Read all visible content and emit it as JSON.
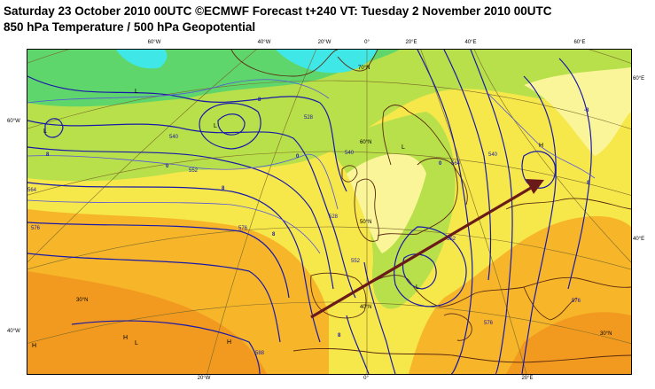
{
  "header": {
    "title": "Saturday 23 October 2010 00UTC ©ECMWF Forecast t+240 VT: Tuesday 2 November 2010 00UTC",
    "subtitle": "850 hPa Temperature / 500 hPa Geopotential"
  },
  "ticks": {
    "top": [
      "60°W",
      "40°W",
      "20°W",
      "0°",
      "20°E",
      "40°E",
      "60°E"
    ],
    "bottom": [
      "20°W",
      "0°",
      "20°E"
    ],
    "left": [
      "60°W",
      "40°W"
    ],
    "right": [
      "60°E",
      "40°E"
    ]
  },
  "map_labels": {
    "lat_70": "70°N",
    "lat_60": "60°N",
    "lat_50": "50°N",
    "lat_40": "40°N",
    "lat_30": "30°N",
    "lat_30b": "30°N"
  },
  "contours": {
    "c528a": "528",
    "c540a": "540",
    "c552a": "552",
    "c564a": "564",
    "c576a": "576",
    "c576b": "576",
    "c588a": "588",
    "c540b": "540",
    "c552b": "552",
    "c564b": "564",
    "c576c": "576",
    "c576d": "576",
    "c528b": "528",
    "c540c": "540",
    "c552c": "552"
  },
  "isotherms": {
    "t8a": "-8",
    "t0a": "0",
    "t8b": "8",
    "t8c": "8",
    "t0b": "0",
    "t8d": "8",
    "t8e": "-8",
    "t0c": "0",
    "t8f": "8",
    "t8g": "8"
  },
  "pressure_centers": {
    "L1": "L",
    "L2": "L",
    "L3": "L",
    "L4": "L",
    "L5": "L",
    "L6": "L",
    "H1": "H",
    "H2": "H",
    "H3": "H",
    "H4": "H"
  },
  "colors": {
    "warm_orange": "#f29a1f",
    "orange": "#f7b52a",
    "yellow": "#f6e84a",
    "pale_yellow": "#fbf59a",
    "light_green": "#b8e04a",
    "green": "#5fd66b",
    "cyan": "#3fe7e6",
    "contour": "#1a1aa8",
    "arrow": "#6b1a1a"
  }
}
